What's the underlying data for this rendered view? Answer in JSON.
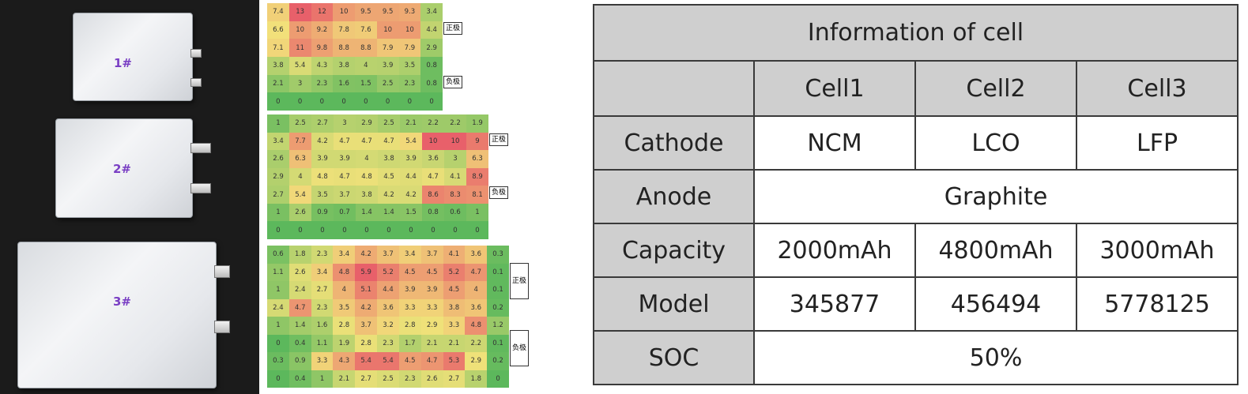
{
  "photo": {
    "cells": [
      {
        "label": "1#"
      },
      {
        "label": "2#"
      },
      {
        "label": "3#"
      }
    ]
  },
  "heatmaps": [
    {
      "rows": [
        [
          "7.4",
          "13",
          "12",
          "10",
          "9.5",
          "9.5",
          "9.3",
          "3.4"
        ],
        [
          "6.6",
          "10",
          "9.2",
          "7.8",
          "7.6",
          "10",
          "10",
          "4.4"
        ],
        [
          "7.1",
          "11",
          "9.8",
          "8.8",
          "8.8",
          "7.9",
          "7.9",
          "2.9"
        ],
        [
          "3.8",
          "5.4",
          "4.3",
          "3.8",
          "4",
          "3.9",
          "3.5",
          "0.8"
        ],
        [
          "2.1",
          "3",
          "2.3",
          "1.6",
          "1.5",
          "2.5",
          "2.3",
          "0.8"
        ],
        [
          "0",
          "0",
          "0",
          "0",
          "0",
          "0",
          "0",
          "0"
        ]
      ],
      "max": 13,
      "positive_label": "正极",
      "negative_label": "负极"
    },
    {
      "rows": [
        [
          "1",
          "2.5",
          "2.7",
          "3",
          "2.9",
          "2.5",
          "2.1",
          "2.2",
          "2.2",
          "1.9"
        ],
        [
          "3.4",
          "7.7",
          "4.2",
          "4.7",
          "4.7",
          "4.7",
          "5.4",
          "10",
          "10",
          "9"
        ],
        [
          "2.6",
          "6.3",
          "3.9",
          "3.9",
          "4",
          "3.8",
          "3.9",
          "3.6",
          "3",
          "6.3"
        ],
        [
          "2.9",
          "4",
          "4.8",
          "4.7",
          "4.8",
          "4.5",
          "4.4",
          "4.7",
          "4.1",
          "8.9"
        ],
        [
          "2.7",
          "5.4",
          "3.5",
          "3.7",
          "3.8",
          "4.2",
          "4.2",
          "8.6",
          "8.3",
          "8.1"
        ],
        [
          "1",
          "2.6",
          "0.9",
          "0.7",
          "1.4",
          "1.4",
          "1.5",
          "0.8",
          "0.6",
          "1"
        ],
        [
          "0",
          "0",
          "0",
          "0",
          "0",
          "0",
          "0",
          "0",
          "0",
          "0"
        ]
      ],
      "max": 10,
      "positive_label": "正极",
      "negative_label": "负极"
    },
    {
      "rows": [
        [
          "0.6",
          "1.8",
          "2.3",
          "3.4",
          "4.2",
          "3.7",
          "3.4",
          "3.7",
          "4.1",
          "3.6",
          "0.3"
        ],
        [
          "1.1",
          "2.6",
          "3.4",
          "4.8",
          "5.9",
          "5.2",
          "4.5",
          "4.5",
          "5.2",
          "4.7",
          "0.1"
        ],
        [
          "1",
          "2.4",
          "2.7",
          "4",
          "5.1",
          "4.4",
          "3.9",
          "3.9",
          "4.5",
          "4",
          "0.1"
        ],
        [
          "2.4",
          "4.7",
          "2.3",
          "3.5",
          "4.2",
          "3.6",
          "3.3",
          "3.3",
          "3.8",
          "3.6",
          "0.2"
        ],
        [
          "1",
          "1.4",
          "1.6",
          "2.8",
          "3.7",
          "3.2",
          "2.8",
          "2.9",
          "3.3",
          "4.8",
          "1.2"
        ],
        [
          "0",
          "0.4",
          "1.1",
          "1.9",
          "2.8",
          "2.3",
          "1.7",
          "2.1",
          "2.1",
          "2.2",
          "0.1"
        ],
        [
          "0.3",
          "0.9",
          "3.3",
          "4.3",
          "5.4",
          "5.4",
          "4.5",
          "4.7",
          "5.3",
          "2.9",
          "0.2"
        ],
        [
          "0",
          "0.4",
          "1",
          "2.1",
          "2.7",
          "2.5",
          "2.3",
          "2.6",
          "2.7",
          "1.8",
          "0"
        ]
      ],
      "max": 5.9,
      "positive_label": "正极",
      "negative_label": "负极"
    }
  ],
  "info_table": {
    "title": "Information of cell",
    "headers": [
      "Cell1",
      "Cell2",
      "Cell3"
    ],
    "rows": {
      "cathode": {
        "label": "Cathode",
        "values": [
          "NCM",
          "LCO",
          "LFP"
        ]
      },
      "anode": {
        "label": "Anode",
        "value": "Graphite"
      },
      "capacity": {
        "label": "Capacity",
        "values": [
          "2000mAh",
          "4800mAh",
          "3000mAh"
        ]
      },
      "model": {
        "label": "Model",
        "values": [
          "345877",
          "456494",
          "5778125"
        ]
      },
      "soc": {
        "label": "SOC",
        "value": "50%"
      }
    }
  },
  "colors": {
    "table_header": "#cfcfcf",
    "table_border": "#3a3a3a",
    "cell_label": "#7a3fc4",
    "heat_low": "#5cb85c",
    "heat_mid": "#f2e27a",
    "heat_high": "#e8606a"
  }
}
